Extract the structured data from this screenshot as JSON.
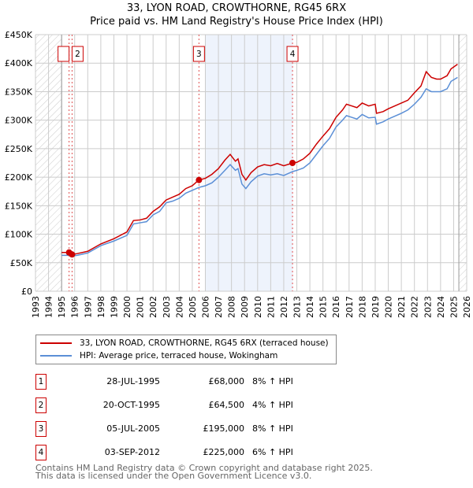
{
  "title": "33, LYON ROAD, CROWTHORNE, RG45 6RX",
  "subtitle": "Price paid vs. HM Land Registry's House Price Index (HPI)",
  "chart_data": {
    "type": "line",
    "xlim": [
      1993,
      2026
    ],
    "ylim": [
      0,
      450000
    ],
    "yticks": [
      "£0",
      "£50K",
      "£100K",
      "£150K",
      "£200K",
      "£250K",
      "£300K",
      "£350K",
      "£400K",
      "£450K"
    ],
    "xticks": [
      "1993",
      "1994",
      "1995",
      "1996",
      "1997",
      "1998",
      "1999",
      "2000",
      "2001",
      "2002",
      "2003",
      "2004",
      "2005",
      "2006",
      "2007",
      "2008",
      "2009",
      "2010",
      "2011",
      "2012",
      "2013",
      "2014",
      "2015",
      "2016",
      "2017",
      "2018",
      "2019",
      "2020",
      "2021",
      "2022",
      "2023",
      "2024",
      "2025",
      "2026"
    ],
    "shaded_range": [
      2006.0,
      2012.7
    ],
    "hatched_before": 1995.0,
    "hatched_after": 2025.4,
    "series": [
      {
        "name": "33, LYON ROAD, CROWTHORNE, RG45 6RX (terraced house)",
        "color": "#cc0000",
        "x": [
          1995.0,
          1995.6,
          1995.8,
          1996.2,
          1997,
          1998,
          1999,
          2000,
          2000.5,
          2001,
          2001.5,
          2002,
          2002.5,
          2003,
          2003.5,
          2004,
          2004.5,
          2005,
          2005.5,
          2006,
          2006.5,
          2007,
          2007.5,
          2007.9,
          2008.3,
          2008.5,
          2008.8,
          2009.1,
          2009.5,
          2010,
          2010.5,
          2011,
          2011.5,
          2012,
          2012.7,
          2013,
          2013.5,
          2014,
          2014.5,
          2015,
          2015.5,
          2016,
          2016.5,
          2016.8,
          2017.2,
          2017.6,
          2018,
          2018.5,
          2019,
          2019.1,
          2019.6,
          2020,
          2020.5,
          2021,
          2021.5,
          2022,
          2022.5,
          2022.9,
          2023.3,
          2023.7,
          2024,
          2024.5,
          2024.8,
          2025.3
        ],
        "values": [
          68000,
          68000,
          64500,
          66000,
          70000,
          83000,
          92000,
          104000,
          124000,
          125000,
          128000,
          140000,
          148000,
          160000,
          165000,
          170000,
          180000,
          185000,
          195000,
          198000,
          205000,
          215000,
          230000,
          240000,
          228000,
          232000,
          205000,
          195000,
          208000,
          218000,
          222000,
          220000,
          224000,
          220000,
          225000,
          226000,
          232000,
          242000,
          258000,
          272000,
          285000,
          305000,
          318000,
          328000,
          325000,
          322000,
          330000,
          325000,
          328000,
          312000,
          315000,
          320000,
          325000,
          330000,
          335000,
          348000,
          360000,
          385000,
          375000,
          372000,
          372000,
          378000,
          390000,
          398000
        ]
      },
      {
        "name": "HPI: Average price, terraced house, Wokingham",
        "color": "#5b8fd6",
        "x": [
          1995.0,
          1995.6,
          1995.8,
          1996.2,
          1997,
          1998,
          1999,
          2000,
          2000.5,
          2001,
          2001.5,
          2002,
          2002.5,
          2003,
          2003.5,
          2004,
          2004.5,
          2005,
          2005.5,
          2006,
          2006.5,
          2007,
          2007.5,
          2007.9,
          2008.3,
          2008.5,
          2008.8,
          2009.1,
          2009.5,
          2010,
          2010.5,
          2011,
          2011.5,
          2012,
          2012.7,
          2013,
          2013.5,
          2014,
          2014.5,
          2015,
          2015.5,
          2016,
          2016.5,
          2016.8,
          2017.2,
          2017.6,
          2018,
          2018.5,
          2019,
          2019.1,
          2019.6,
          2020,
          2020.5,
          2021,
          2021.5,
          2022,
          2022.5,
          2022.9,
          2023.3,
          2023.7,
          2024,
          2024.5,
          2024.8,
          2025.3
        ],
        "values": [
          63000,
          63000,
          62000,
          63000,
          67000,
          80000,
          88000,
          98000,
          118000,
          120000,
          122000,
          134000,
          140000,
          155000,
          158000,
          163000,
          172000,
          177000,
          182000,
          185000,
          190000,
          200000,
          212000,
          222000,
          212000,
          215000,
          188000,
          180000,
          192000,
          202000,
          206000,
          204000,
          206000,
          203000,
          210000,
          212000,
          216000,
          225000,
          240000,
          255000,
          268000,
          288000,
          300000,
          308000,
          305000,
          302000,
          310000,
          304000,
          305000,
          293000,
          297000,
          302000,
          307000,
          312000,
          318000,
          328000,
          340000,
          355000,
          350000,
          350000,
          350000,
          355000,
          368000,
          375000
        ]
      }
    ],
    "sales": [
      {
        "label": "1",
        "date": "28-JUL-1995",
        "year": 1995.57,
        "price": 68000,
        "price_text": "£68,000",
        "hpi_text": "8% ↑ HPI"
      },
      {
        "label": "2",
        "date": "20-OCT-1995",
        "year": 1995.8,
        "price": 64500,
        "price_text": "£64,500",
        "hpi_text": "4% ↑ HPI"
      },
      {
        "label": "3",
        "date": "05-JUL-2005",
        "year": 2005.51,
        "price": 195000,
        "price_text": "£195,000",
        "hpi_text": "8% ↑ HPI"
      },
      {
        "label": "4",
        "date": "03-SEP-2012",
        "year": 2012.67,
        "price": 225000,
        "price_text": "£225,000",
        "hpi_text": "6% ↑ HPI"
      }
    ]
  },
  "footer": [
    "Contains HM Land Registry data © Crown copyright and database right 2025.",
    "This data is licensed under the Open Government Licence v3.0."
  ]
}
